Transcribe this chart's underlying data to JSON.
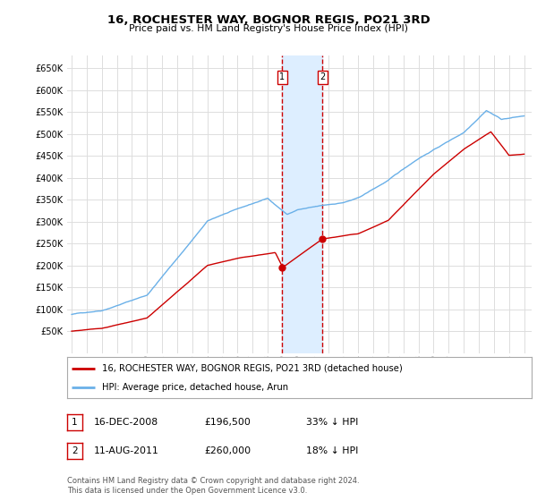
{
  "title": "16, ROCHESTER WAY, BOGNOR REGIS, PO21 3RD",
  "subtitle": "Price paid vs. HM Land Registry's House Price Index (HPI)",
  "yticks": [
    0,
    50000,
    100000,
    150000,
    200000,
    250000,
    300000,
    350000,
    400000,
    450000,
    500000,
    550000,
    600000,
    650000
  ],
  "xlim_start": 1994.7,
  "xlim_end": 2025.5,
  "ylim": [
    0,
    680000
  ],
  "legend_entries": [
    "16, ROCHESTER WAY, BOGNOR REGIS, PO21 3RD (detached house)",
    "HPI: Average price, detached house, Arun"
  ],
  "sale1_date": 2008.96,
  "sale1_price": 196500,
  "sale1_label": "1",
  "sale2_date": 2011.62,
  "sale2_price": 260000,
  "sale2_label": "2",
  "table_rows": [
    [
      "1",
      "16-DEC-2008",
      "£196,500",
      "33% ↓ HPI"
    ],
    [
      "2",
      "11-AUG-2011",
      "£260,000",
      "18% ↓ HPI"
    ]
  ],
  "footnote": "Contains HM Land Registry data © Crown copyright and database right 2024.\nThis data is licensed under the Open Government Licence v3.0.",
  "red_color": "#cc0000",
  "blue_color": "#6ab0e8",
  "shade_color": "#ddeeff",
  "grid_color": "#dddddd",
  "background_color": "#ffffff"
}
